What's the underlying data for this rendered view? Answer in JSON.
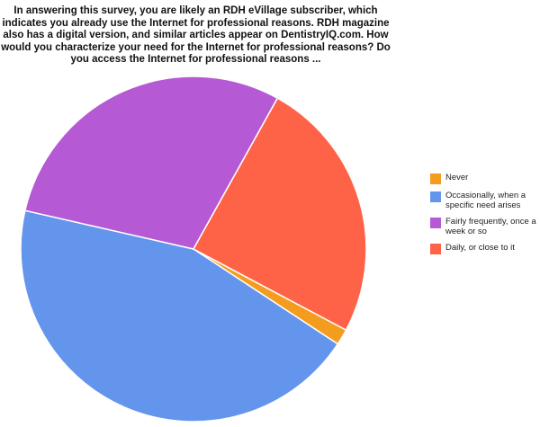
{
  "chart_data": {
    "type": "pie",
    "title": "In answering this survey, you are likely an RDH eVillage subscriber, which indicates you already use the Internet for professional reasons. RDH magazine also has a digital version, and similar articles appear on DentistryIQ.com. How would you characterize your need for the Internet for professional reasons? Do you access the Internet for professional reasons ...",
    "categories": [
      "Never",
      "Occasionally, when a specific need arises",
      "Fairly frequently, once a week or so",
      "Daily, or close to it"
    ],
    "values": [
      1.5,
      44.3,
      29.5,
      24.7
    ],
    "colors": [
      "#f39c1e",
      "#6495ed",
      "#b659d4",
      "#ff6347"
    ],
    "legend_position": "right"
  }
}
